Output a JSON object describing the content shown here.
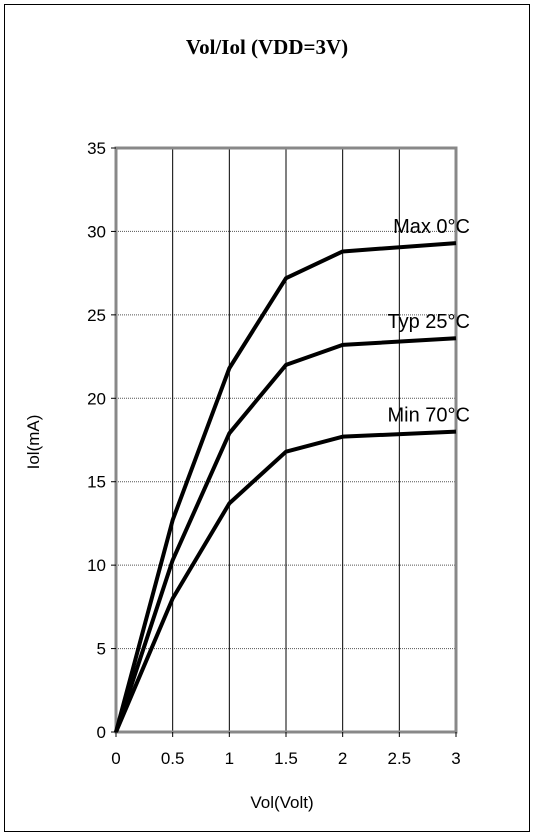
{
  "chart_data": {
    "type": "line",
    "title": "Vol/Iol (VDD=3V)",
    "xlabel": "Vol(Volt)",
    "ylabel": "Iol(mA)",
    "xlim": [
      0,
      3
    ],
    "ylim": [
      0,
      35
    ],
    "xticks": [
      "0",
      "0.5",
      "1",
      "1.5",
      "2",
      "2.5",
      "3"
    ],
    "yticks": [
      "0",
      "5",
      "10",
      "15",
      "20",
      "25",
      "30",
      "35"
    ],
    "grid": true,
    "x": [
      0,
      0.5,
      1,
      1.5,
      2,
      3
    ],
    "series": [
      {
        "name": "Max 0°C",
        "values": [
          0,
          12.7,
          21.8,
          27.2,
          28.8,
          29.3
        ]
      },
      {
        "name": "Typ 25°C",
        "values": [
          0,
          10.3,
          17.9,
          22.0,
          23.2,
          23.6
        ]
      },
      {
        "name": "Min 70°C",
        "values": [
          0,
          8.0,
          13.7,
          16.8,
          17.7,
          18.0
        ]
      }
    ]
  }
}
